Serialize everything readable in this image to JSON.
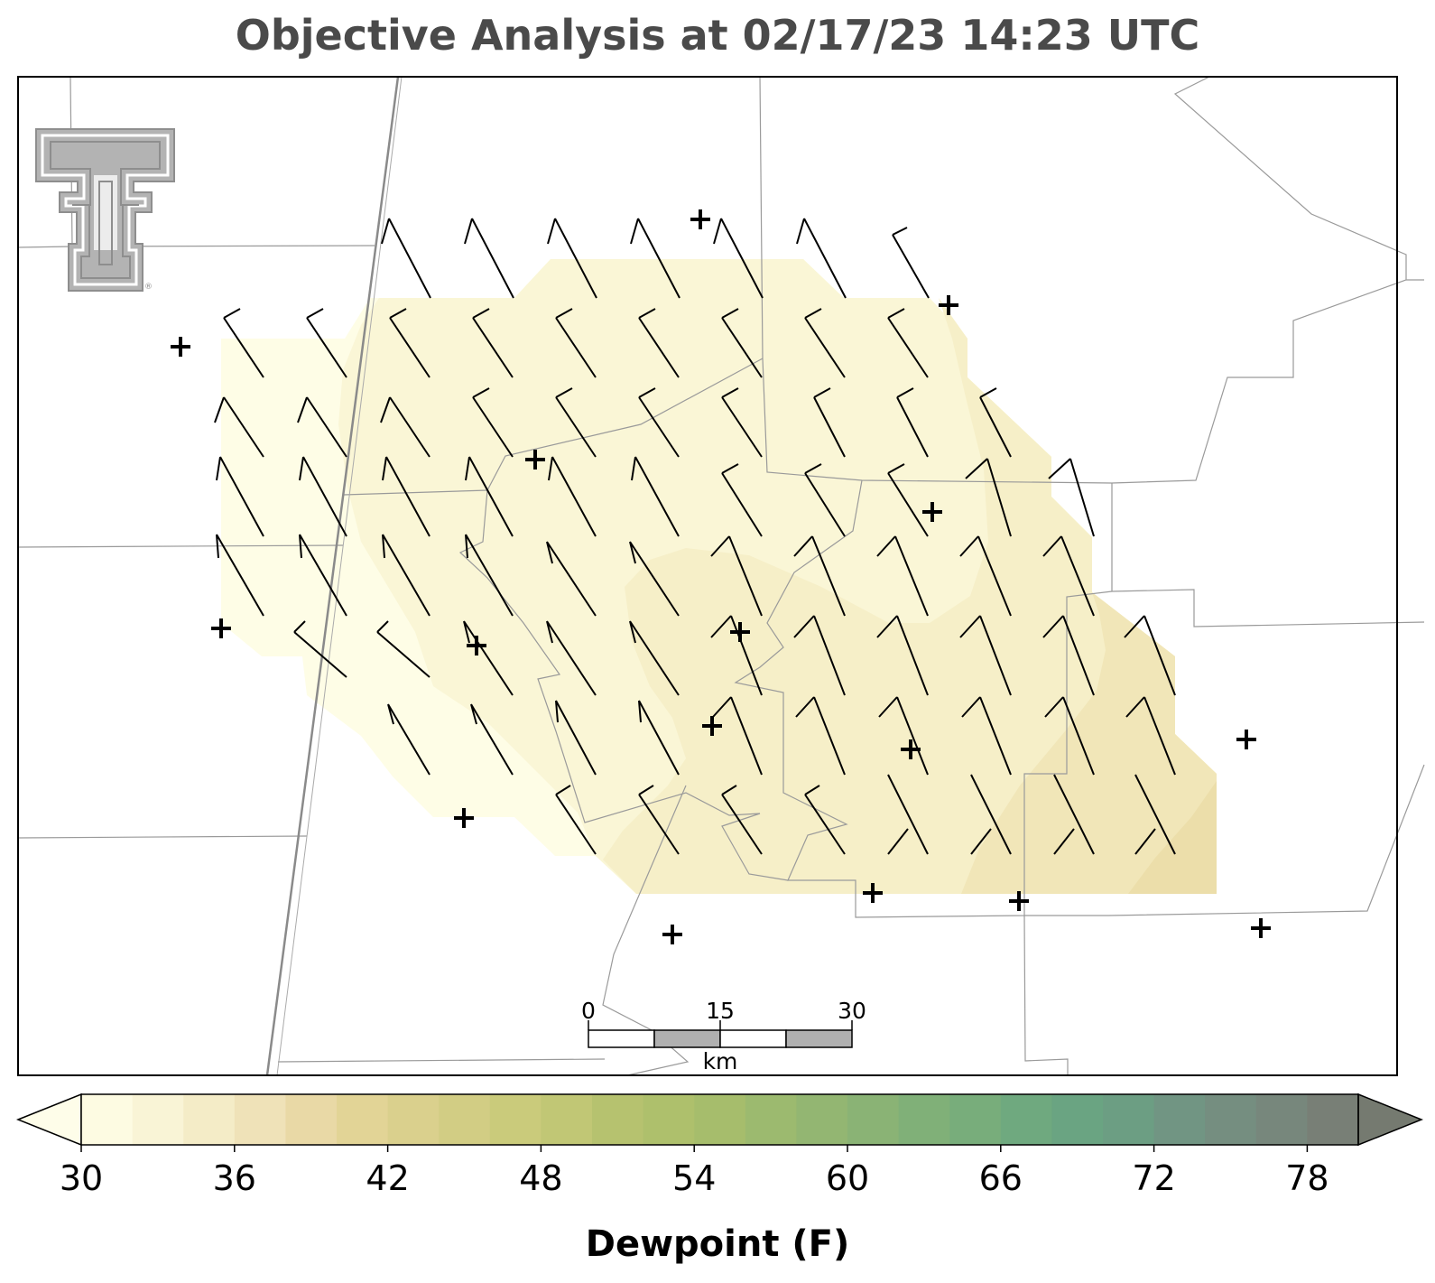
{
  "title": "Objective Analysis at 02/17/23 14:23 UTC",
  "colorbar": {
    "label": "Dewpoint (F)",
    "ticks": [
      "30",
      "36",
      "42",
      "48",
      "54",
      "60",
      "66",
      "72",
      "78"
    ],
    "min": 30,
    "max": 80,
    "colors": [
      "#fdfbe2",
      "#f9f4d6",
      "#f4ecc7",
      "#efe2b8",
      "#e9d9a6",
      "#e2d496",
      "#dad08d",
      "#d2cd84",
      "#cacb7b",
      "#c1c775",
      "#b6c26f",
      "#aec06c",
      "#a6bd6c",
      "#9cba6f",
      "#93b672",
      "#8ab375",
      "#80b078",
      "#78ad7b",
      "#6fa97f",
      "#6aa482",
      "#6c9e83",
      "#719583",
      "#758e80",
      "#77877c",
      "#787f76"
    ],
    "under_color": "#fefde9",
    "over_color": "#757a70"
  },
  "scalebar": {
    "labels": [
      "0",
      "15",
      "30"
    ],
    "unit": "km"
  },
  "map": {
    "background": "#ffffff",
    "boundary_color": "#9a9a9a",
    "highway_color": "#8a8a8a",
    "fill_colors": {
      "level_30": "#fefde6",
      "level_32": "#fbf7da",
      "level_34": "#f6f0c9",
      "level_36": "#f0e6b8"
    },
    "barb_color": "#000000",
    "station_marker": "plus",
    "logo": "texas-tech-double-t-logo"
  }
}
